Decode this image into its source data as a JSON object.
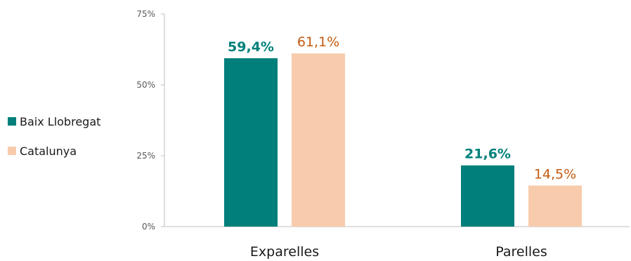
{
  "chart_data": {
    "type": "bar",
    "categories": [
      "Exparelles",
      "Parelles"
    ],
    "series": [
      {
        "name": "Baix Llobregat",
        "values": [
          59.4,
          21.6
        ],
        "labels": [
          "59,4%",
          "21,6%"
        ],
        "color": "#007F7B",
        "label_color": "#00807C",
        "label_bold": true
      },
      {
        "name": "Catalunya",
        "values": [
          61.1,
          14.5
        ],
        "labels": [
          "61,1%",
          "14,5%"
        ],
        "color": "#F8CBAD",
        "label_color": "#C55A11",
        "label_bold": false
      }
    ],
    "yticks": [
      "0%",
      "25%",
      "50%",
      "75%"
    ],
    "ylim": [
      0,
      75
    ],
    "title": "",
    "xlabel": "",
    "ylabel": "",
    "legend_position": "left",
    "grid": false,
    "axis_color": "#BFBFBF"
  }
}
